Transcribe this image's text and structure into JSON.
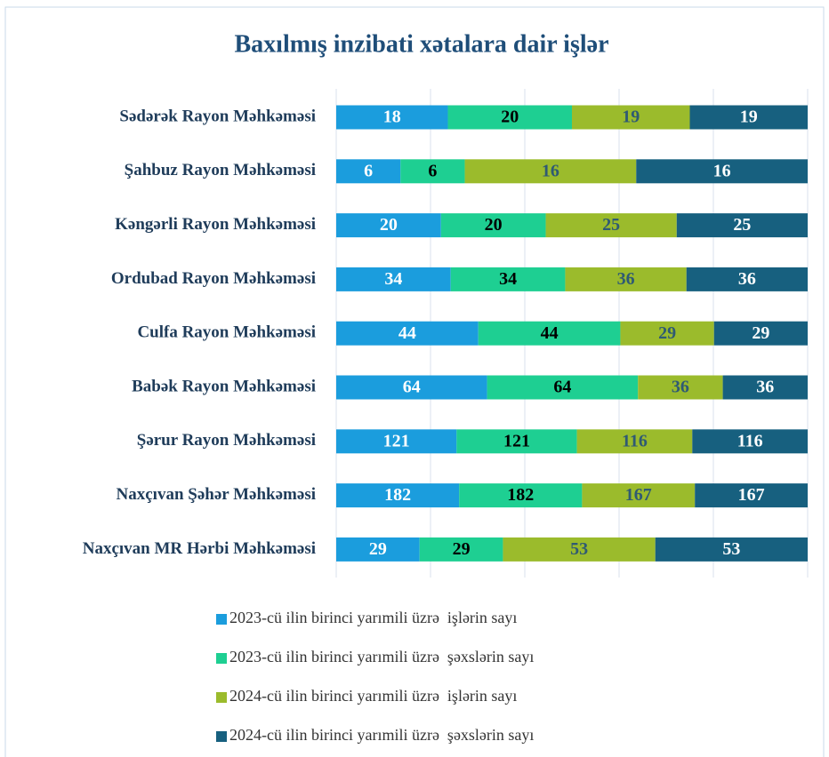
{
  "chart_data": {
    "type": "bar",
    "orientation": "horizontal",
    "stacking": "percent",
    "title": "Baxılmış inzibati xətalara dair işlər",
    "categories": [
      "Sədərək Rayon Məhkəməsi",
      "Şahbuz Rayon Məhkəməsi",
      "Kəngərli Rayon Məhkəməsi",
      "Ordubad Rayon Məhkəməsi",
      "Culfa Rayon Məhkəməsi",
      "Babək Rayon Məhkəməsi",
      "Şərur Rayon Məhkəməsi",
      "Naxçıvan Şəhər Məhkəməsi",
      "Naxçıvan MR Hərbi Məhkəməsi"
    ],
    "series": [
      {
        "name": "2023-cü ilin birinci yarımili üzrə  işlərin sayı",
        "color": "#1b9ddd",
        "label_color": "#ffffff",
        "values": [
          18,
          6,
          20,
          34,
          44,
          64,
          121,
          182,
          29
        ]
      },
      {
        "name": "2023-cü ilin birinci yarımili üzrə  şəxslərin sayı",
        "color": "#1ecf92",
        "label_color": "#000000",
        "values": [
          20,
          6,
          20,
          34,
          44,
          64,
          121,
          182,
          29
        ]
      },
      {
        "name": "2024-cü ilin birinci yarımili üzrə  işlərin sayı",
        "color": "#9bbb2c",
        "label_color": "#2f5a73",
        "values": [
          19,
          16,
          25,
          36,
          29,
          36,
          116,
          167,
          53
        ]
      },
      {
        "name": "2024-cü ilin birinci yarımili üzrə  şəxslərin sayı",
        "color": "#17607f",
        "label_color": "#ffffff",
        "values": [
          19,
          16,
          25,
          36,
          29,
          36,
          116,
          167,
          53
        ]
      }
    ],
    "xlim": [
      0,
      100
    ],
    "xticks": [
      0,
      20,
      40,
      60,
      80,
      100
    ],
    "grid": true,
    "legend": "bottom"
  }
}
